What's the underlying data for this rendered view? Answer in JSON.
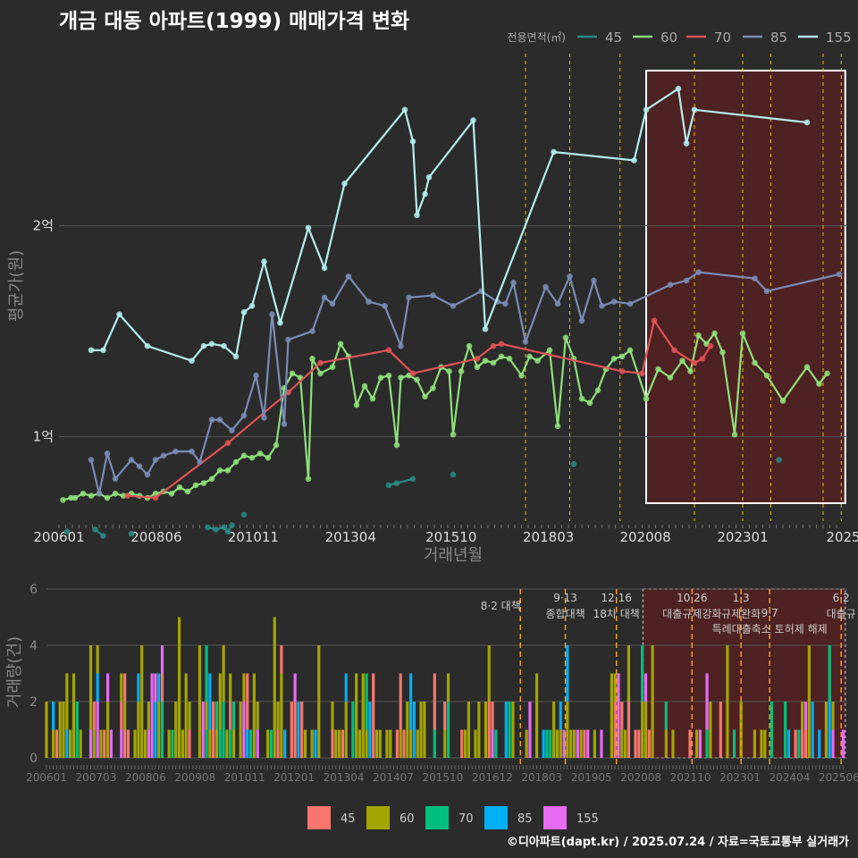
{
  "title": "개금 대동 아파트(1999) 매매가격 변화",
  "footer": "©디아파트(dapt.kr) / 2025.07.24 / 자료=국토교통부 실거래가",
  "colors": {
    "s45": "#2a8a86",
    "s60": "#8fe07b",
    "s70": "#e05256",
    "s85": "#7a8cb6",
    "s155": "#b4f0ee",
    "b45": "#f8766d",
    "b60": "#a3a500",
    "b70": "#00bf7d",
    "b85": "#00b0f6",
    "b155": "#e76bf3",
    "policy": "#e8c000",
    "highlight_fill": "#5b1f20"
  },
  "chart_data": [
    {
      "type": "line",
      "legend_title": "전용면적(㎡)",
      "legend_position": "top-right",
      "xlabel": "거래년월",
      "ylabel": "평균가(원)",
      "x_ticks": [
        "200601",
        "200806",
        "201011",
        "201304",
        "201510",
        "201803",
        "202008",
        "202301",
        "2025"
      ],
      "y_ticks": [
        {
          "value": 1,
          "label": "1억"
        },
        {
          "value": 2,
          "label": "2억"
        }
      ],
      "ylim": [
        0.6,
        2.85
      ],
      "xlim": [
        2006.0,
        2025.6
      ],
      "grid": true,
      "highlight_range": [
        2020.6,
        2025.55
      ],
      "policy_dates": [
        2017.6,
        2018.7,
        2019.95,
        2021.8,
        2023.0,
        2023.7,
        2025.0,
        2025.45
      ],
      "series": [
        {
          "name": "45",
          "lines": [
            [
              [
                2006.2,
                0.55
              ]
            ],
            [
              [
                2006.9,
                0.56
              ],
              [
                2007.1,
                0.53
              ]
            ],
            [
              [
                2007.8,
                0.54
              ]
            ],
            [
              [
                2009.7,
                0.57
              ],
              [
                2009.9,
                0.56
              ],
              [
                2010.1,
                0.57
              ],
              [
                2010.2,
                0.55
              ],
              [
                2010.3,
                0.58
              ]
            ],
            [
              [
                2010.6,
                0.63
              ]
            ],
            [
              [
                2014.2,
                0.77
              ],
              [
                2014.4,
                0.78
              ],
              [
                2014.8,
                0.8
              ]
            ],
            [
              [
                2015.8,
                0.82
              ]
            ],
            [
              [
                2018.8,
                0.87
              ]
            ],
            [
              [
                2023.9,
                0.89
              ]
            ]
          ]
        },
        {
          "name": "60",
          "points": [
            [
              2006.1,
              0.7
            ],
            [
              2006.3,
              0.71
            ],
            [
              2006.4,
              0.71
            ],
            [
              2006.6,
              0.73
            ],
            [
              2006.8,
              0.72
            ],
            [
              2007.0,
              0.73
            ],
            [
              2007.2,
              0.71
            ],
            [
              2007.4,
              0.73
            ],
            [
              2007.6,
              0.72
            ],
            [
              2007.8,
              0.73
            ],
            [
              2008.0,
              0.72
            ],
            [
              2008.2,
              0.71
            ],
            [
              2008.4,
              0.73
            ],
            [
              2008.6,
              0.74
            ],
            [
              2008.8,
              0.73
            ],
            [
              2009.0,
              0.76
            ],
            [
              2009.2,
              0.74
            ],
            [
              2009.4,
              0.77
            ],
            [
              2009.6,
              0.78
            ],
            [
              2009.8,
              0.8
            ],
            [
              2010.0,
              0.84
            ],
            [
              2010.2,
              0.84
            ],
            [
              2010.4,
              0.88
            ],
            [
              2010.6,
              0.91
            ],
            [
              2010.8,
              0.9
            ],
            [
              2011.0,
              0.92
            ],
            [
              2011.2,
              0.9
            ],
            [
              2011.4,
              0.96
            ],
            [
              2011.6,
              1.23
            ],
            [
              2011.8,
              1.3
            ],
            [
              2012.0,
              1.28
            ],
            [
              2012.2,
              0.8
            ],
            [
              2012.3,
              1.37
            ],
            [
              2012.5,
              1.3
            ],
            [
              2012.8,
              1.33
            ],
            [
              2013.0,
              1.44
            ],
            [
              2013.2,
              1.38
            ],
            [
              2013.4,
              1.15
            ],
            [
              2013.6,
              1.24
            ],
            [
              2013.8,
              1.18
            ],
            [
              2014.0,
              1.28
            ],
            [
              2014.2,
              1.29
            ],
            [
              2014.4,
              0.96
            ],
            [
              2014.5,
              1.28
            ],
            [
              2014.7,
              1.29
            ],
            [
              2014.9,
              1.27
            ],
            [
              2015.1,
              1.19
            ],
            [
              2015.3,
              1.23
            ],
            [
              2015.5,
              1.33
            ],
            [
              2015.7,
              1.31
            ],
            [
              2015.8,
              1.01
            ],
            [
              2016.0,
              1.31
            ],
            [
              2016.2,
              1.43
            ],
            [
              2016.4,
              1.33
            ],
            [
              2016.6,
              1.36
            ],
            [
              2016.8,
              1.35
            ],
            [
              2017.0,
              1.38
            ],
            [
              2017.2,
              1.37
            ],
            [
              2017.5,
              1.29
            ],
            [
              2017.7,
              1.38
            ],
            [
              2017.9,
              1.36
            ],
            [
              2018.2,
              1.41
            ],
            [
              2018.4,
              1.05
            ],
            [
              2018.6,
              1.47
            ],
            [
              2018.8,
              1.37
            ],
            [
              2019.0,
              1.18
            ],
            [
              2019.2,
              1.16
            ],
            [
              2019.4,
              1.22
            ],
            [
              2019.6,
              1.32
            ],
            [
              2019.8,
              1.37
            ],
            [
              2020.0,
              1.38
            ],
            [
              2020.2,
              1.41
            ],
            [
              2020.6,
              1.18
            ],
            [
              2020.9,
              1.32
            ],
            [
              2021.2,
              1.28
            ],
            [
              2021.5,
              1.36
            ],
            [
              2021.7,
              1.31
            ],
            [
              2021.9,
              1.48
            ],
            [
              2022.1,
              1.44
            ],
            [
              2022.3,
              1.49
            ],
            [
              2022.5,
              1.4
            ],
            [
              2022.8,
              1.01
            ],
            [
              2023.0,
              1.49
            ],
            [
              2023.3,
              1.35
            ],
            [
              2023.6,
              1.29
            ],
            [
              2024.0,
              1.17
            ],
            [
              2024.6,
              1.33
            ],
            [
              2024.9,
              1.25
            ],
            [
              2025.1,
              1.3
            ]
          ]
        },
        {
          "name": "70",
          "points": [
            [
              2007.7,
              0.72
            ],
            [
              2008.4,
              0.71
            ],
            [
              2010.2,
              0.97
            ],
            [
              2011.7,
              1.21
            ],
            [
              2012.5,
              1.35
            ],
            [
              2014.2,
              1.41
            ],
            [
              2014.8,
              1.3
            ],
            [
              2016.4,
              1.37
            ],
            [
              2016.8,
              1.43
            ],
            [
              2017.0,
              1.44
            ],
            [
              2020.0,
              1.31
            ],
            [
              2020.5,
              1.3
            ],
            [
              2020.8,
              1.55
            ],
            [
              2021.3,
              1.41
            ],
            [
              2021.8,
              1.35
            ],
            [
              2022.0,
              1.37
            ],
            [
              2022.2,
              1.43
            ]
          ]
        },
        {
          "name": "85",
          "points": [
            [
              2006.8,
              0.89
            ],
            [
              2007.0,
              0.73
            ],
            [
              2007.2,
              0.92
            ],
            [
              2007.4,
              0.8
            ],
            [
              2007.8,
              0.89
            ],
            [
              2008.0,
              0.86
            ],
            [
              2008.2,
              0.82
            ],
            [
              2008.4,
              0.89
            ],
            [
              2008.6,
              0.91
            ],
            [
              2008.9,
              0.93
            ],
            [
              2009.3,
              0.93
            ],
            [
              2009.5,
              0.88
            ],
            [
              2009.8,
              1.08
            ],
            [
              2010.0,
              1.08
            ],
            [
              2010.3,
              1.03
            ],
            [
              2010.6,
              1.1
            ],
            [
              2010.9,
              1.29
            ],
            [
              2011.1,
              1.09
            ],
            [
              2011.3,
              1.58
            ],
            [
              2011.6,
              1.06
            ],
            [
              2011.7,
              1.46
            ],
            [
              2012.3,
              1.5
            ],
            [
              2012.6,
              1.66
            ],
            [
              2012.8,
              1.63
            ],
            [
              2013.2,
              1.76
            ],
            [
              2013.7,
              1.64
            ],
            [
              2014.1,
              1.62
            ],
            [
              2014.5,
              1.43
            ],
            [
              2014.7,
              1.66
            ],
            [
              2015.3,
              1.67
            ],
            [
              2015.8,
              1.62
            ],
            [
              2016.5,
              1.69
            ],
            [
              2016.9,
              1.64
            ],
            [
              2017.1,
              1.63
            ],
            [
              2017.3,
              1.73
            ],
            [
              2017.6,
              1.45
            ],
            [
              2018.1,
              1.71
            ],
            [
              2018.4,
              1.63
            ],
            [
              2018.7,
              1.76
            ],
            [
              2019.0,
              1.55
            ],
            [
              2019.3,
              1.74
            ],
            [
              2019.5,
              1.62
            ],
            [
              2019.8,
              1.64
            ],
            [
              2020.2,
              1.63
            ],
            [
              2021.2,
              1.72
            ],
            [
              2021.6,
              1.74
            ],
            [
              2021.9,
              1.78
            ],
            [
              2023.3,
              1.75
            ],
            [
              2023.6,
              1.69
            ],
            [
              2025.4,
              1.77
            ]
          ]
        },
        {
          "name": "155",
          "points": [
            [
              2006.8,
              1.41
            ],
            [
              2007.1,
              1.41
            ],
            [
              2007.5,
              1.58
            ],
            [
              2008.2,
              1.43
            ],
            [
              2009.3,
              1.36
            ],
            [
              2009.6,
              1.43
            ],
            [
              2009.8,
              1.44
            ],
            [
              2010.1,
              1.43
            ],
            [
              2010.4,
              1.38
            ],
            [
              2010.6,
              1.59
            ],
            [
              2010.8,
              1.62
            ],
            [
              2011.1,
              1.83
            ],
            [
              2011.5,
              1.54
            ],
            [
              2012.2,
              1.99
            ],
            [
              2012.6,
              1.8
            ],
            [
              2013.1,
              2.2
            ],
            [
              2014.6,
              2.55
            ],
            [
              2014.8,
              2.4
            ],
            [
              2014.9,
              2.05
            ],
            [
              2015.1,
              2.15
            ],
            [
              2015.2,
              2.23
            ],
            [
              2016.3,
              2.5
            ],
            [
              2016.6,
              1.51
            ],
            [
              2018.3,
              2.35
            ],
            [
              2020.3,
              2.31
            ],
            [
              2020.6,
              2.55
            ],
            [
              2021.4,
              2.65
            ],
            [
              2021.6,
              2.39
            ],
            [
              2021.8,
              2.55
            ],
            [
              2024.6,
              2.49
            ]
          ]
        }
      ]
    },
    {
      "type": "bar",
      "stacked": true,
      "legend_position": "bottom",
      "ylabel": "거래량(건)",
      "y_ticks": [
        0,
        2,
        4,
        6
      ],
      "ylim": [
        0,
        6
      ],
      "x_ticks": [
        "200601",
        "200703",
        "200806",
        "200908",
        "201011",
        "201201",
        "201304",
        "201407",
        "201510",
        "201612",
        "201803",
        "201905",
        "202008",
        "202110",
        "202301",
        "202404",
        "202506"
      ],
      "policies": [
        {
          "date": "8·2 대책",
          "x": 2017.6,
          "label_rank": 3
        },
        {
          "date": "9·13",
          "x": 2018.7,
          "label_rank": 1,
          "name": "종합대책"
        },
        {
          "date": "12·16",
          "x": 2019.95,
          "label_rank": 1,
          "name": "18차 대책"
        },
        {
          "date": "10·26",
          "x": 2021.8,
          "label_rank": 1,
          "name": "대출규제강화"
        },
        {
          "date": "1·3",
          "x": 2023.0,
          "label_rank": 1,
          "name": "규제완화"
        },
        {
          "date": "9·7",
          "x": 2023.7,
          "label_rank": 2,
          "name": "특례대출축소 토허제 해제"
        },
        {
          "date": "6·2",
          "x": 2025.45,
          "label_rank": 1,
          "name": "대출규"
        }
      ],
      "highlight_range": [
        2020.6,
        2025.55
      ],
      "legend": [
        "45",
        "60",
        "70",
        "85",
        "155"
      ]
    }
  ]
}
